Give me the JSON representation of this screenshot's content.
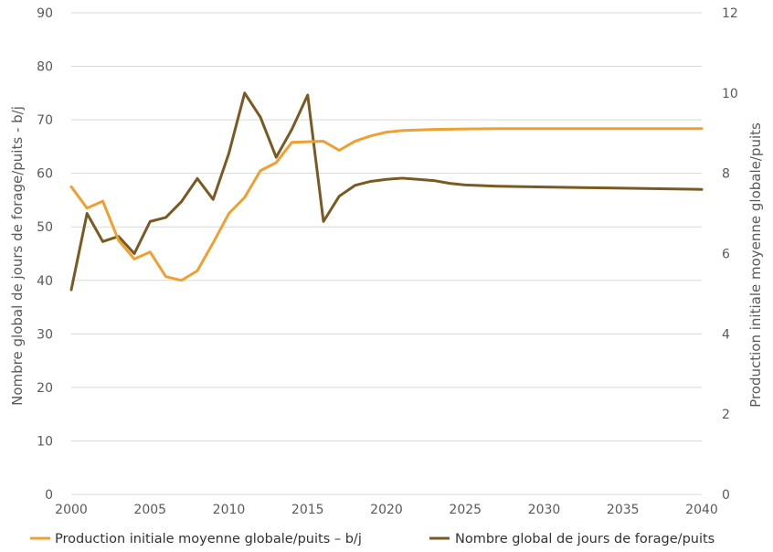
{
  "chart_data": {
    "type": "line",
    "xlim": [
      2000,
      2040
    ],
    "x_ticks": [
      "2000",
      "2005",
      "2010",
      "2015",
      "2020",
      "2025",
      "2030",
      "2035",
      "2040"
    ],
    "y_left": {
      "label": "Nombre global de jours de forage/puits - b/j",
      "lim": [
        0,
        90
      ],
      "ticks": [
        "0",
        "10",
        "20",
        "30",
        "40",
        "50",
        "60",
        "70",
        "80",
        "90"
      ]
    },
    "y_right": {
      "label": "Production initiale moyenne globale/puits",
      "lim": [
        0,
        12
      ],
      "ticks": [
        "0",
        "2",
        "4",
        "6",
        "8",
        "10",
        "12"
      ]
    },
    "grid": "horizontal",
    "legend_position": "bottom",
    "series": [
      {
        "name": "Production initiale moyenne globale/puits – b/j",
        "color": "#f0a030",
        "axis": "left",
        "points": [
          [
            2000,
            57.5
          ],
          [
            2001,
            53.5
          ],
          [
            2002,
            54.8
          ],
          [
            2003,
            47.5
          ],
          [
            2004,
            44.0
          ],
          [
            2005,
            45.3
          ],
          [
            2006,
            40.7
          ],
          [
            2007,
            40.0
          ],
          [
            2008,
            41.8
          ],
          [
            2009,
            47.0
          ],
          [
            2010,
            52.5
          ],
          [
            2011,
            55.5
          ],
          [
            2012,
            60.5
          ],
          [
            2013,
            62.0
          ],
          [
            2014,
            65.8
          ],
          [
            2015,
            65.9
          ],
          [
            2016,
            66.0
          ],
          [
            2017,
            64.3
          ],
          [
            2018,
            66.0
          ],
          [
            2019,
            67.0
          ],
          [
            2020,
            67.7
          ],
          [
            2021,
            68.0
          ],
          [
            2022,
            68.1
          ],
          [
            2023,
            68.2
          ],
          [
            2024,
            68.25
          ],
          [
            2025,
            68.3
          ],
          [
            2027,
            68.35
          ],
          [
            2030,
            68.35
          ],
          [
            2035,
            68.35
          ],
          [
            2040,
            68.35
          ]
        ]
      },
      {
        "name": "Nombre global de jours de forage/puits",
        "color": "#7a5a22",
        "axis": "right",
        "points": [
          [
            2000,
            5.1
          ],
          [
            2001,
            7.0
          ],
          [
            2002,
            6.3
          ],
          [
            2003,
            6.43
          ],
          [
            2004,
            6.0
          ],
          [
            2005,
            6.8
          ],
          [
            2006,
            6.9
          ],
          [
            2007,
            7.3
          ],
          [
            2008,
            7.87
          ],
          [
            2009,
            7.35
          ],
          [
            2010,
            8.5
          ],
          [
            2011,
            10.0
          ],
          [
            2012,
            9.4
          ],
          [
            2013,
            8.4
          ],
          [
            2014,
            9.1
          ],
          [
            2015,
            9.95
          ],
          [
            2016,
            6.8
          ],
          [
            2017,
            7.43
          ],
          [
            2018,
            7.7
          ],
          [
            2019,
            7.8
          ],
          [
            2020,
            7.85
          ],
          [
            2021,
            7.88
          ],
          [
            2022,
            7.85
          ],
          [
            2023,
            7.82
          ],
          [
            2024,
            7.75
          ],
          [
            2025,
            7.71
          ],
          [
            2027,
            7.68
          ],
          [
            2030,
            7.66
          ],
          [
            2035,
            7.63
          ],
          [
            2040,
            7.6
          ]
        ]
      }
    ]
  }
}
